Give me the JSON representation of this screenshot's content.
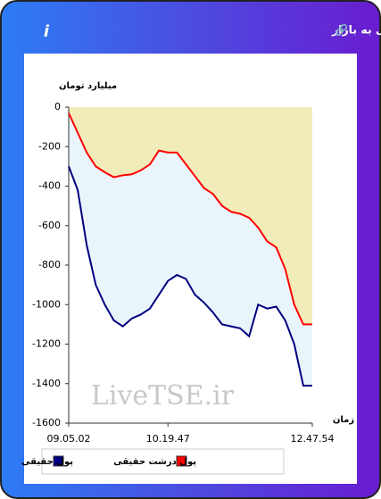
{
  "chart_data": {
    "type": "line",
    "title": "برآیند ورود و خروج پول حقیقی و پول درشت حقیقی به بازار",
    "y_label": "میلیارد تومان",
    "x_label": "زمان",
    "watermark": "LiveTSE.ir",
    "x": [
      0,
      1,
      2,
      3,
      4,
      5,
      6,
      7,
      8,
      9,
      10,
      11,
      12,
      13,
      14,
      15,
      16,
      17,
      18,
      19,
      20,
      21,
      22,
      23,
      24,
      25,
      26,
      27
    ],
    "xlim": [
      0,
      27
    ],
    "xticks": [
      {
        "value": 0,
        "label": "09.05.02"
      },
      {
        "value": 11,
        "label": "10.19.47"
      },
      {
        "value": 27,
        "label": "12.47.54"
      }
    ],
    "ylim": [
      -1600,
      0
    ],
    "yticks": [
      0,
      -200,
      -400,
      -600,
      -800,
      -1000,
      -1200,
      -1400,
      -1600
    ],
    "series": [
      {
        "name": "پول حقیقی",
        "color": "#000080",
        "values": [
          -300,
          -420,
          -700,
          -900,
          -1000,
          -1080,
          -1110,
          -1070,
          -1050,
          -1020,
          -950,
          -880,
          -850,
          -870,
          -950,
          -990,
          -1040,
          -1100,
          -1110,
          -1120,
          -1160,
          -1000,
          -1020,
          -1010,
          -1080,
          -1200,
          -1410,
          -1410
        ]
      },
      {
        "name": "پول درشت حقیقی",
        "color": "#ff0000",
        "values": [
          -30,
          -130,
          -230,
          -300,
          -330,
          -355,
          -345,
          -340,
          -320,
          -290,
          -220,
          -230,
          -230,
          -290,
          -350,
          -410,
          -440,
          -500,
          -530,
          -540,
          -560,
          -610,
          -680,
          -710,
          -820,
          -1000,
          -1100,
          -1100
        ]
      }
    ]
  }
}
